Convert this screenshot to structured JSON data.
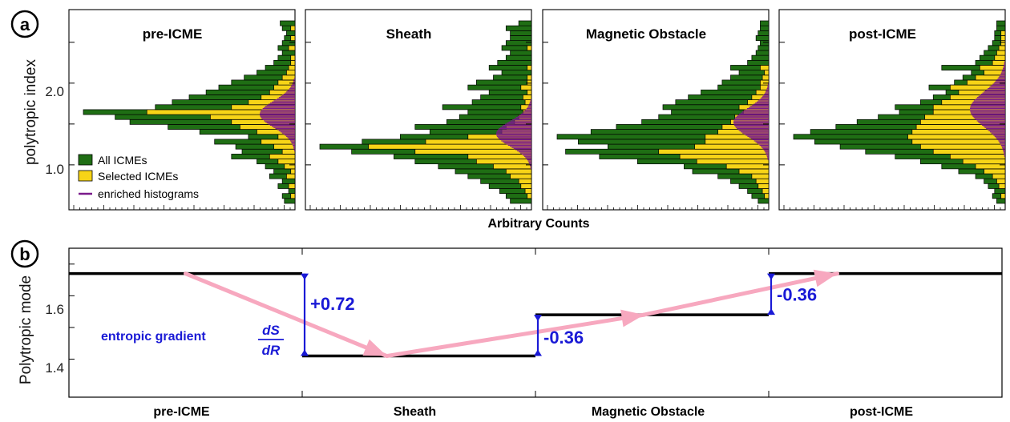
{
  "panel_a": {
    "letter": "a",
    "ylabel": "polytropic index",
    "xlabel": "Arbitrary Counts",
    "yticks": [
      {
        "value": 1.0,
        "label": "1.0"
      },
      {
        "value": 2.0,
        "label": "2.0"
      }
    ],
    "legend": [
      {
        "label": "All ICMEs",
        "color": "#1f6e14"
      },
      {
        "label": "Selected ICMEs",
        "color": "#f7d417"
      },
      {
        "label": "enriched histograms",
        "color": "#7a1a8a"
      }
    ]
  },
  "panel_b": {
    "letter": "b",
    "ylabel": "Polytropic mode",
    "yticks": [
      {
        "value": 1.4,
        "label": "1.4"
      },
      {
        "value": 1.6,
        "label": "1.6"
      }
    ],
    "annotation": {
      "text": "entropic gradient",
      "frac_num": "dS",
      "frac_den": "dR"
    }
  },
  "chart_data": [
    {
      "type": "bar",
      "orientation": "horizontal",
      "ylabel": "polytropic index",
      "xlabel": "Arbitrary Counts",
      "ylim": [
        0.45,
        2.9
      ],
      "colors": {
        "all": "#1f6e14",
        "selected": "#f7d417",
        "enriched": "#7a1a8a"
      },
      "panels": [
        {
          "title": "pre-ICME",
          "peak": 1.62,
          "width": 0.42,
          "all": [
            0.05,
            0.06,
            0.03,
            0.08,
            0.06,
            0.12,
            0.1,
            0.14,
            0.18,
            0.3,
            0.25,
            0.28,
            0.38,
            0.22,
            0.45,
            0.6,
            0.78,
            0.85,
            1.0,
            0.66,
            0.58,
            0.5,
            0.42,
            0.36,
            0.3,
            0.24,
            0.18,
            0.14,
            0.1,
            0.08,
            0.06,
            0.08,
            0.06,
            0.05,
            0.04,
            0.06,
            0.07
          ],
          "selected": [
            0.0,
            0.02,
            0.0,
            0.03,
            0.0,
            0.04,
            0.02,
            0.05,
            0.08,
            0.12,
            0.06,
            0.1,
            0.16,
            0.08,
            0.18,
            0.26,
            0.3,
            0.4,
            0.7,
            0.3,
            0.22,
            0.16,
            0.12,
            0.1,
            0.08,
            0.06,
            0.04,
            0.03,
            0.02,
            0.02,
            0.0,
            0.03,
            0.0,
            0.02,
            0.0,
            0.02,
            0.0
          ]
        },
        {
          "title": "Sheath",
          "peak": 1.38,
          "width": 0.4,
          "all": [
            0.1,
            0.12,
            0.15,
            0.2,
            0.24,
            0.3,
            0.36,
            0.44,
            0.55,
            0.65,
            0.85,
            1.0,
            0.8,
            0.62,
            0.48,
            0.55,
            0.4,
            0.34,
            0.3,
            0.42,
            0.28,
            0.24,
            0.2,
            0.3,
            0.26,
            0.18,
            0.14,
            0.2,
            0.16,
            0.12,
            0.1,
            0.14,
            0.12,
            0.1,
            0.1,
            0.12,
            0.06
          ],
          "selected": [
            0.0,
            0.02,
            0.03,
            0.05,
            0.06,
            0.1,
            0.12,
            0.18,
            0.26,
            0.3,
            0.55,
            0.77,
            0.5,
            0.3,
            0.14,
            0.12,
            0.08,
            0.06,
            0.04,
            0.05,
            0.03,
            0.04,
            0.02,
            0.05,
            0.02,
            0.02,
            0.0,
            0.02,
            0.0,
            0.0,
            0.0,
            0.02,
            0.0,
            0.0,
            0.0,
            0.0,
            0.0
          ]
        },
        {
          "title": "Magnetic Obstacle",
          "peak": 1.52,
          "width": 0.44,
          "all": [
            0.05,
            0.08,
            0.1,
            0.14,
            0.18,
            0.24,
            0.36,
            0.4,
            0.62,
            0.8,
            0.96,
            0.76,
            0.9,
            1.0,
            0.84,
            0.72,
            0.6,
            0.52,
            0.46,
            0.5,
            0.44,
            0.38,
            0.32,
            0.24,
            0.22,
            0.18,
            0.14,
            0.18,
            0.1,
            0.08,
            0.06,
            0.05,
            0.04,
            0.06,
            0.05,
            0.04,
            0.04
          ],
          "selected": [
            0.0,
            0.02,
            0.03,
            0.05,
            0.06,
            0.08,
            0.14,
            0.2,
            0.34,
            0.42,
            0.52,
            0.35,
            0.3,
            0.3,
            0.24,
            0.22,
            0.18,
            0.16,
            0.12,
            0.14,
            0.1,
            0.08,
            0.06,
            0.04,
            0.04,
            0.03,
            0.02,
            0.04,
            0.0,
            0.0,
            0.0,
            0.0,
            0.0,
            0.0,
            0.0,
            0.0,
            0.0
          ]
        },
        {
          "title": "post-ICME",
          "peak": 1.68,
          "width": 0.55,
          "all": [
            0.04,
            0.06,
            0.05,
            0.08,
            0.1,
            0.14,
            0.22,
            0.3,
            0.4,
            0.52,
            0.66,
            0.78,
            0.9,
            1.0,
            0.92,
            0.8,
            0.7,
            0.6,
            0.5,
            0.52,
            0.4,
            0.34,
            0.28,
            0.36,
            0.24,
            0.2,
            0.16,
            0.3,
            0.14,
            0.12,
            0.1,
            0.08,
            0.06,
            0.05,
            0.05,
            0.04,
            0.04
          ],
          "selected": [
            0.0,
            0.02,
            0.0,
            0.03,
            0.04,
            0.06,
            0.1,
            0.14,
            0.2,
            0.26,
            0.34,
            0.4,
            0.44,
            0.46,
            0.44,
            0.42,
            0.4,
            0.38,
            0.34,
            0.34,
            0.3,
            0.26,
            0.22,
            0.26,
            0.18,
            0.14,
            0.1,
            0.12,
            0.06,
            0.05,
            0.04,
            0.03,
            0.02,
            0.02,
            0.02,
            0.0,
            0.0
          ]
        }
      ]
    },
    {
      "type": "line",
      "ylabel": "Polytropic mode",
      "ylim": [
        1.28,
        1.75
      ],
      "categories": [
        "pre-ICME",
        "Sheath",
        "Magnetic Obstacle",
        "post-ICME"
      ],
      "values": [
        1.67,
        1.41,
        1.54,
        1.67
      ],
      "differences": [
        {
          "between": [
            0,
            1
          ],
          "label": "+0.72"
        },
        {
          "between": [
            1,
            2
          ],
          "label": "-0.36"
        },
        {
          "between": [
            2,
            3
          ],
          "label": "-0.36"
        }
      ]
    }
  ]
}
